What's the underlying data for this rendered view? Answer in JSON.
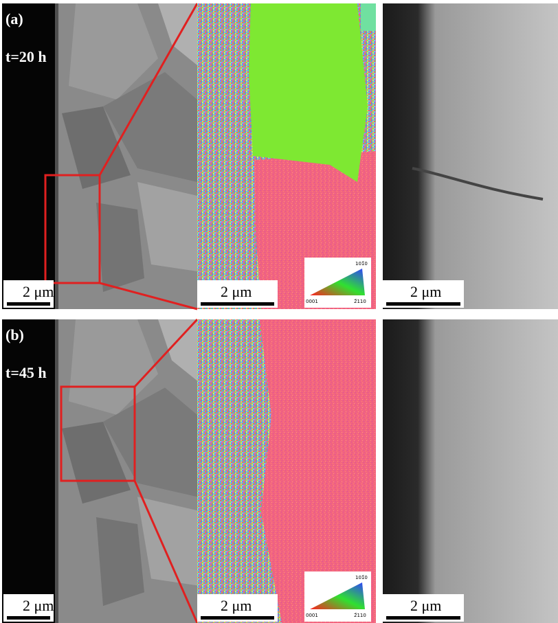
{
  "panels": [
    {
      "label": "(a)",
      "time": "t=20 h",
      "scale_bars": [
        "2 μm",
        "2 μm",
        "2 μm"
      ],
      "ipf_legend": {
        "top": "101̄0",
        "left": "0001",
        "right": "2̄110"
      }
    },
    {
      "label": "(b)",
      "time": "t=45 h",
      "scale_bars": [
        "2 μm",
        "2 μm",
        "2 μm"
      ],
      "ipf_legend": {
        "top": "101̄0",
        "left": "0001",
        "right": "2̄110"
      }
    }
  ]
}
